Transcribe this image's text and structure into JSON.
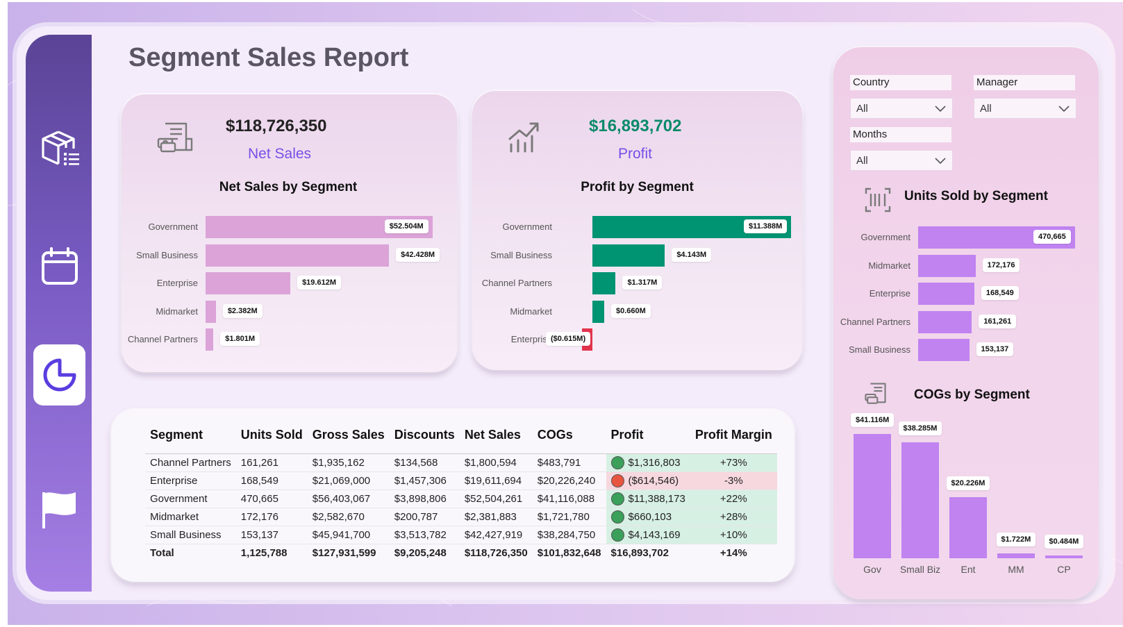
{
  "page_title": "Segment Sales Report",
  "nav": [
    {
      "name": "products-icon",
      "active": false
    },
    {
      "name": "calendar-icon",
      "active": false
    },
    {
      "name": "pie-chart-icon",
      "active": true
    },
    {
      "name": "flag-icon",
      "active": false
    }
  ],
  "kpi_net_sales": {
    "value": "$118,726,350",
    "label": "Net Sales",
    "icon": "receipt-cash-icon"
  },
  "kpi_profit": {
    "value": "$16,893,702",
    "label": "Profit",
    "icon": "trend-chart-icon"
  },
  "colors": {
    "net_sales_bar": "#dba3d8",
    "profit_bar": "#009473",
    "negative_bar": "#e3334d",
    "units_bar": "#c083f0",
    "profit_value_text": "#0b8a6a",
    "kpi_label": "#7a4ee8"
  },
  "filters": {
    "country": {
      "title": "Country",
      "value": "All"
    },
    "manager": {
      "title": "Manager",
      "value": "All"
    },
    "months": {
      "title": "Months",
      "value": "All"
    }
  },
  "chart_data": [
    {
      "type": "bar",
      "orientation": "horizontal",
      "title": "Net Sales by Segment",
      "categories": [
        "Government",
        "Small Business",
        "Enterprise",
        "Midmarket",
        "Channel Partners"
      ],
      "values": [
        52.504,
        42.428,
        19.612,
        2.382,
        1.801
      ],
      "data_labels": [
        "$52.504M",
        "$42.428M",
        "$19.612M",
        "$2.382M",
        "$1.801M"
      ],
      "xlim": [
        0,
        53.5
      ]
    },
    {
      "type": "bar",
      "orientation": "horizontal",
      "title": "Profit by Segment",
      "categories": [
        "Government",
        "Small Business",
        "Channel Partners",
        "Midmarket",
        "Enterprise"
      ],
      "values": [
        11.388,
        4.143,
        1.317,
        0.66,
        -0.615
      ],
      "data_labels": [
        "$11.388M",
        "$4.143M",
        "$1.317M",
        "$0.660M",
        "($0.615M)"
      ],
      "xlim": [
        -0.615,
        11.388
      ]
    },
    {
      "type": "bar",
      "orientation": "horizontal",
      "title": "Units Sold by Segment",
      "categories": [
        "Government",
        "Midmarket",
        "Enterprise",
        "Channel Partners",
        "Small Business"
      ],
      "values": [
        470665,
        172176,
        168549,
        161261,
        153137
      ],
      "data_labels": [
        "470,665",
        "172,176",
        "168,549",
        "161,261",
        "153,137"
      ],
      "xlim": [
        0,
        470665
      ]
    },
    {
      "type": "bar",
      "orientation": "vertical",
      "title": "COGs by Segment",
      "categories": [
        "Gov",
        "Small Biz",
        "Ent",
        "MM",
        "CP"
      ],
      "values": [
        41.116,
        38.285,
        20.226,
        1.722,
        0.484
      ],
      "data_labels": [
        "$41.116M",
        "$38.285M",
        "$20.226M",
        "$1.722M",
        "$0.484M"
      ],
      "ylim": [
        0,
        41.116
      ]
    }
  ],
  "units_icon": "barcode-icon",
  "cogs_icon": "receipt-cash-icon",
  "table": {
    "headers": [
      "Segment",
      "Units Sold",
      "Gross Sales",
      "Discounts",
      "Net Sales",
      "COGs",
      "Profit",
      "Profit Margin"
    ],
    "rows": [
      {
        "segment": "Channel Partners",
        "units": "161,261",
        "gross": "$1,935,162",
        "discounts": "$134,568",
        "net": "$1,800,594",
        "cogs": "$483,791",
        "profit": "$1,316,803",
        "margin": "+73%",
        "status": "positive"
      },
      {
        "segment": "Enterprise",
        "units": "168,549",
        "gross": "$21,069,000",
        "discounts": "$1,457,306",
        "net": "$19,611,694",
        "cogs": "$20,226,240",
        "profit": "($614,546)",
        "margin": "-3%",
        "status": "negative"
      },
      {
        "segment": "Government",
        "units": "470,665",
        "gross": "$56,403,067",
        "discounts": "$3,898,806",
        "net": "$52,504,261",
        "cogs": "$41,116,088",
        "profit": "$11,388,173",
        "margin": "+22%",
        "status": "positive"
      },
      {
        "segment": "Midmarket",
        "units": "172,176",
        "gross": "$2,582,670",
        "discounts": "$200,787",
        "net": "$2,381,883",
        "cogs": "$1,721,780",
        "profit": "$660,103",
        "margin": "+28%",
        "status": "positive"
      },
      {
        "segment": "Small Business",
        "units": "153,137",
        "gross": "$45,941,700",
        "discounts": "$3,513,782",
        "net": "$42,427,919",
        "cogs": "$38,284,750",
        "profit": "$4,143,169",
        "margin": "+10%",
        "status": "positive"
      }
    ],
    "total": {
      "segment": "Total",
      "units": "1,125,788",
      "gross": "$127,931,599",
      "discounts": "$9,205,248",
      "net": "$118,726,350",
      "cogs": "$101,832,648",
      "profit": "$16,893,702",
      "margin": "+14%"
    }
  }
}
